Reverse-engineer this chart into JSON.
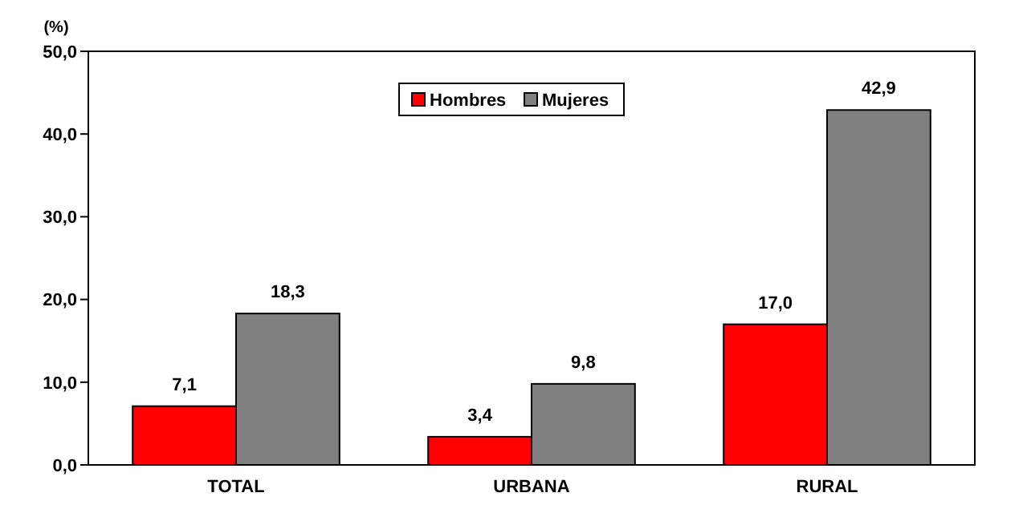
{
  "chart_data": {
    "type": "bar",
    "ylabel": "(%)",
    "categories": [
      "TOTAL",
      "URBANA",
      "RURAL"
    ],
    "series": [
      {
        "name": "Hombres",
        "color": "#ff0000",
        "values": [
          7.1,
          3.4,
          17.0
        ],
        "value_labels": [
          "7,1",
          "3,4",
          "17,0"
        ]
      },
      {
        "name": "Mujeres",
        "color": "#808080",
        "values": [
          18.3,
          9.8,
          42.9
        ],
        "value_labels": [
          "18,3",
          "9,8",
          "42,9"
        ]
      }
    ],
    "ylim": [
      0,
      50
    ],
    "yticks": [
      {
        "value": 0,
        "label": "0,0"
      },
      {
        "value": 10,
        "label": "10,0"
      },
      {
        "value": 20,
        "label": "20,0"
      },
      {
        "value": 30,
        "label": "30,0"
      },
      {
        "value": 40,
        "label": "40,0"
      },
      {
        "value": 50,
        "label": "50,0"
      }
    ],
    "grid": false,
    "legend": "top"
  }
}
